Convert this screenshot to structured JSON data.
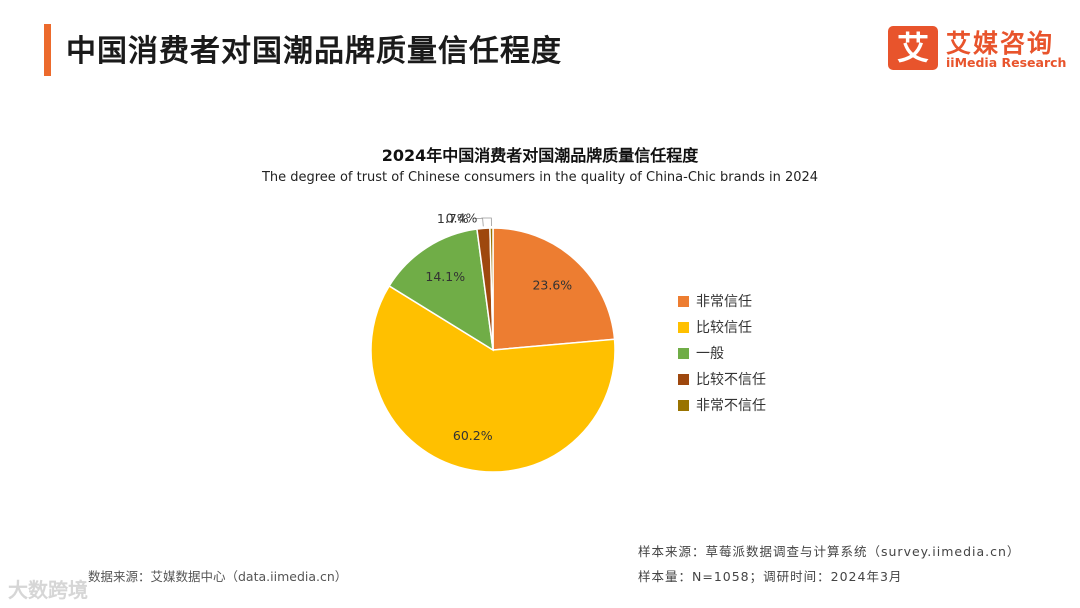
{
  "header": {
    "title": "中国消费者对国潮品牌质量信任程度",
    "accent_color": "#ec6a2c"
  },
  "logo": {
    "mark": "艾",
    "name_cn": "艾媒咨询",
    "name_en": "iiMedia Research",
    "color": "#e8542c"
  },
  "chart_data": {
    "type": "pie",
    "title": "2024年中国消费者对国潮品牌质量信任程度",
    "subtitle": "The degree of trust of Chinese consumers in the quality of China-Chic brands in 2024",
    "slices": [
      {
        "label": "非常信任",
        "value": 23.6,
        "display": "23.6%",
        "color": "#ed7d31"
      },
      {
        "label": "比较信任",
        "value": 60.2,
        "display": "60.2%",
        "color": "#ffc000"
      },
      {
        "label": "一般",
        "value": 14.1,
        "display": "14.1%",
        "color": "#70ad47"
      },
      {
        "label": "比较不信任",
        "value": 1.7,
        "display": "1.7%",
        "color": "#9e480e"
      },
      {
        "label": "非常不信任",
        "value": 0.4,
        "display": "0.4%",
        "color": "#997300"
      }
    ],
    "start": "12 o'clock",
    "direction": "clockwise",
    "legend_position": "right"
  },
  "footer": {
    "data_source": "数据来源：艾媒数据中心（data.iimedia.cn）",
    "sample_source": "样本来源：草莓派数据调查与计算系统（survey.iimedia.cn）",
    "sample_info": "样本量：N=1058；调研时间：2024年3月"
  },
  "watermark": {
    "text": "大数跨境"
  }
}
